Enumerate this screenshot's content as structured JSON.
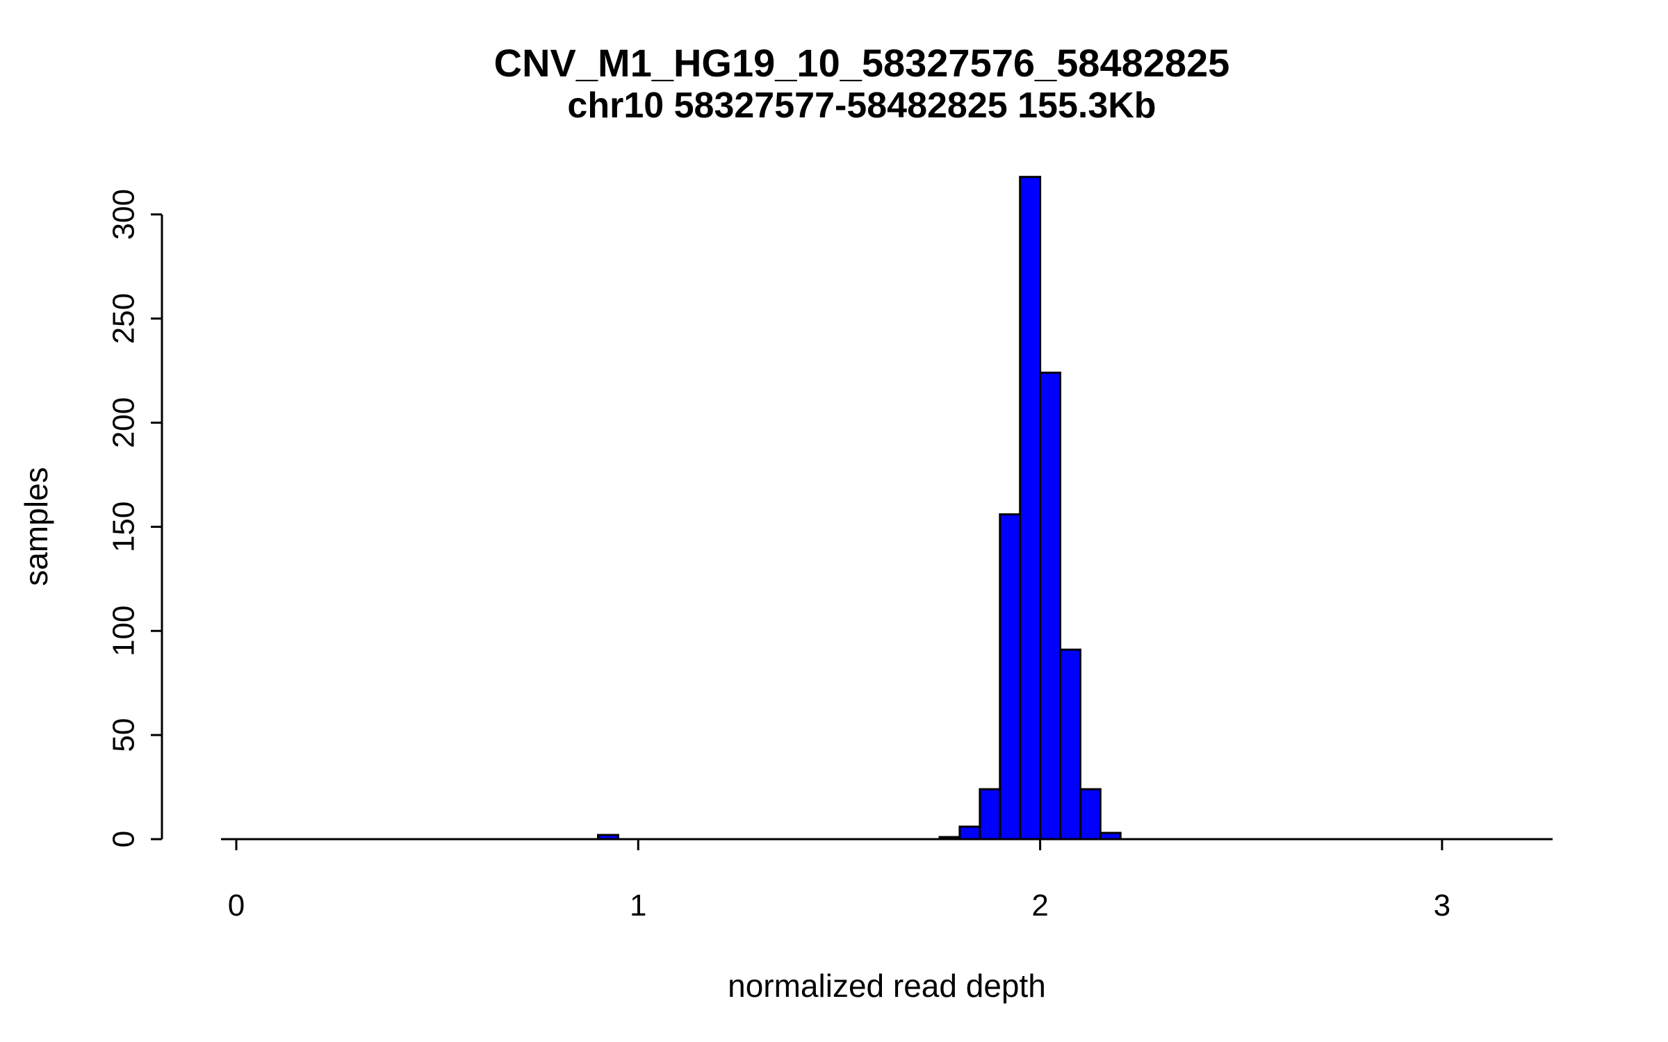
{
  "page": {
    "background_color": "#FFFFFF"
  },
  "chart_data": {
    "type": "bar",
    "subtype": "histogram",
    "title": "CNV_M1_HG19_10_58327576_58482825",
    "subtitle": "chr10 58327577-58482825 155.3Kb",
    "xlabel": "normalized read depth",
    "ylabel": "samples",
    "x_ticks": [
      0,
      1,
      2,
      3
    ],
    "y_ticks": [
      0,
      50,
      100,
      150,
      200,
      250,
      300
    ],
    "xlim": [
      -0.05,
      3.28
    ],
    "ylim": [
      0,
      320
    ],
    "grid": "off",
    "legend": "none",
    "bin_width": 0.05,
    "bar_color": "#0000FF",
    "bar_border_color": "#000000",
    "bins": [
      {
        "x": 0.9,
        "count": 2
      },
      {
        "x": 1.75,
        "count": 1
      },
      {
        "x": 1.8,
        "count": 6
      },
      {
        "x": 1.85,
        "count": 24
      },
      {
        "x": 1.9,
        "count": 156
      },
      {
        "x": 1.95,
        "count": 318
      },
      {
        "x": 2.0,
        "count": 224
      },
      {
        "x": 2.05,
        "count": 91
      },
      {
        "x": 2.1,
        "count": 24
      },
      {
        "x": 2.15,
        "count": 3
      }
    ]
  }
}
